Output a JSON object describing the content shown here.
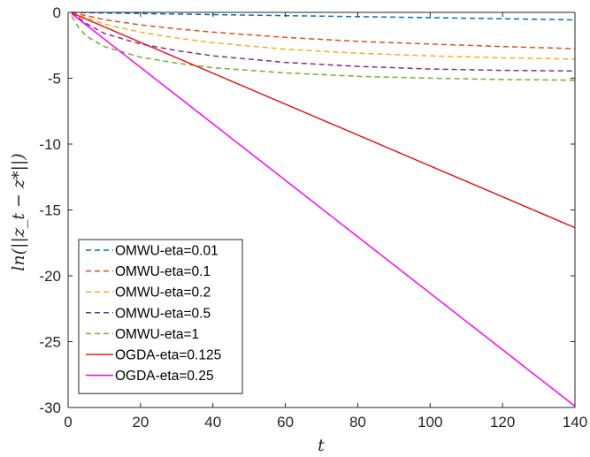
{
  "chart_data": {
    "type": "line",
    "xlabel": "t",
    "ylabel": "ln(||z_t − z*||)",
    "xlim": [
      0,
      140
    ],
    "ylim": [
      -30,
      0
    ],
    "x_ticks": [
      0,
      20,
      40,
      60,
      80,
      100,
      120,
      140
    ],
    "y_ticks": [
      0,
      -5,
      -10,
      -15,
      -20,
      -25,
      -30
    ],
    "grid": false,
    "legend_position": "lower-left",
    "series": [
      {
        "name": "OMWU-eta=0.01",
        "style": "dashed",
        "color": "#0072BD",
        "x": [
          1,
          10,
          20,
          40,
          60,
          80,
          100,
          120,
          140
        ],
        "y": [
          0.0,
          -0.05,
          -0.09,
          -0.17,
          -0.25,
          -0.32,
          -0.4,
          -0.48,
          -0.57
        ]
      },
      {
        "name": "OMWU-eta=0.1",
        "style": "dashed",
        "color": "#D95319",
        "x": [
          1,
          10,
          20,
          30,
          40,
          60,
          80,
          100,
          120,
          140
        ],
        "y": [
          0.0,
          -0.55,
          -0.95,
          -1.25,
          -1.5,
          -1.9,
          -2.2,
          -2.4,
          -2.6,
          -2.75
        ]
      },
      {
        "name": "OMWU-eta=0.2",
        "style": "dashed",
        "color": "#EDB120",
        "x": [
          1,
          10,
          20,
          30,
          40,
          60,
          80,
          100,
          120,
          140
        ],
        "y": [
          0.0,
          -0.9,
          -1.5,
          -1.95,
          -2.3,
          -2.8,
          -3.1,
          -3.3,
          -3.45,
          -3.55
        ]
      },
      {
        "name": "OMWU-eta=0.5",
        "style": "dashed",
        "color": "#7E2F8E",
        "x": [
          1,
          5,
          10,
          20,
          30,
          40,
          60,
          80,
          100,
          120,
          140
        ],
        "y": [
          0.0,
          -0.85,
          -1.6,
          -2.4,
          -2.9,
          -3.3,
          -3.8,
          -4.1,
          -4.3,
          -4.4,
          -4.45
        ]
      },
      {
        "name": "OMWU-eta=1",
        "style": "dashed",
        "color": "#77AC30",
        "x": [
          1,
          3,
          5,
          10,
          20,
          30,
          40,
          60,
          80,
          100,
          120,
          140
        ],
        "y": [
          -0.3,
          -1.2,
          -1.8,
          -2.6,
          -3.4,
          -3.85,
          -4.2,
          -4.6,
          -4.85,
          -5.0,
          -5.1,
          -5.15
        ]
      },
      {
        "name": "OGDA-eta=0.125",
        "style": "solid",
        "color": "#E31A1C",
        "x": [
          1,
          140
        ],
        "y": [
          -0.05,
          -16.35
        ]
      },
      {
        "name": "OGDA-eta=0.25",
        "style": "solid",
        "color": "#FF00FF",
        "x": [
          1,
          140
        ],
        "y": [
          -0.1,
          -29.9
        ]
      }
    ]
  }
}
